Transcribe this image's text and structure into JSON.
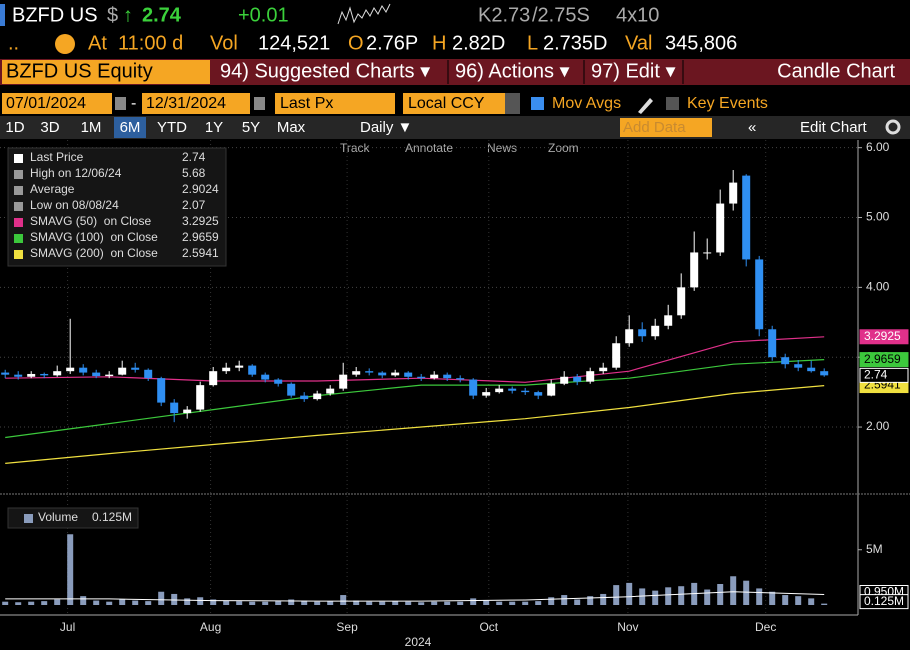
{
  "header": {
    "ticker": "BZFD US",
    "currency": "$",
    "arrow": "↑",
    "last": "2.74",
    "change": "+0.01",
    "bid": "K2.73",
    "ask": "/2.75S",
    "size": "4x10"
  },
  "quote": {
    "time_label": "At",
    "time": "11:00 d",
    "vol_label": "Vol",
    "vol": "124,521",
    "open_label": "O",
    "open": "2.76P",
    "high_label": "H",
    "high": "2.82D",
    "low_label": "L",
    "low": "2.735D",
    "val_label": "Val",
    "val": "345,806"
  },
  "menu": {
    "security": "BZFD US Equity",
    "suggested": "94) Suggested Charts ▾",
    "actions": "96) Actions ▾",
    "edit": "97) Edit ▾",
    "chart_type": "Candle Chart"
  },
  "settings": {
    "start": "07/01/2024",
    "dash": "-",
    "end": "12/31/2024",
    "field": "Last Px",
    "currency": "Local CCY",
    "mov_avgs": "Mov Avgs",
    "key_events": "Key Events"
  },
  "periods": [
    "1D",
    "3D",
    "1M",
    "6M",
    "YTD",
    "1Y",
    "5Y",
    "Max"
  ],
  "toolbar": {
    "frequency": "Daily ▼",
    "add_data": "Add Data",
    "edit_chart": "Edit Chart"
  },
  "tools": [
    "Track",
    "Annotate",
    "News",
    "Zoom"
  ],
  "chart_data": {
    "type": "candlestick",
    "legend": [
      "Last Price",
      "High on 12/06/24",
      "Average",
      "Low on 08/08/24"
    ],
    "average": 2.9024,
    "up_color": "#ffffff",
    "down_color": "#2f8ff2",
    "candles": [
      [
        2.78,
        2.82,
        2.7,
        2.75
      ],
      [
        2.75,
        2.8,
        2.68,
        2.72
      ],
      [
        2.72,
        2.8,
        2.7,
        2.76
      ],
      [
        2.76,
        2.78,
        2.7,
        2.74
      ],
      [
        2.74,
        2.88,
        2.72,
        2.8
      ],
      [
        2.8,
        3.55,
        2.76,
        2.85
      ],
      [
        2.85,
        2.9,
        2.74,
        2.78
      ],
      [
        2.78,
        2.82,
        2.7,
        2.73
      ],
      [
        2.73,
        2.8,
        2.7,
        2.75
      ],
      [
        2.75,
        2.95,
        2.74,
        2.85
      ],
      [
        2.85,
        2.92,
        2.78,
        2.82
      ],
      [
        2.82,
        2.84,
        2.66,
        2.7
      ],
      [
        2.7,
        2.72,
        2.3,
        2.35
      ],
      [
        2.35,
        2.4,
        2.07,
        2.2
      ],
      [
        2.2,
        2.3,
        2.12,
        2.25
      ],
      [
        2.25,
        2.65,
        2.22,
        2.6
      ],
      [
        2.6,
        2.86,
        2.58,
        2.8
      ],
      [
        2.8,
        2.92,
        2.76,
        2.85
      ],
      [
        2.85,
        2.95,
        2.8,
        2.88
      ],
      [
        2.88,
        2.9,
        2.72,
        2.75
      ],
      [
        2.75,
        2.78,
        2.64,
        2.68
      ],
      [
        2.68,
        2.7,
        2.58,
        2.62
      ],
      [
        2.62,
        2.64,
        2.42,
        2.45
      ],
      [
        2.45,
        2.5,
        2.36,
        2.4
      ],
      [
        2.4,
        2.52,
        2.38,
        2.48
      ],
      [
        2.48,
        2.6,
        2.45,
        2.55
      ],
      [
        2.55,
        2.92,
        2.52,
        2.75
      ],
      [
        2.75,
        2.86,
        2.72,
        2.8
      ],
      [
        2.8,
        2.84,
        2.74,
        2.78
      ],
      [
        2.78,
        2.8,
        2.7,
        2.74
      ],
      [
        2.74,
        2.82,
        2.72,
        2.78
      ],
      [
        2.78,
        2.8,
        2.68,
        2.72
      ],
      [
        2.72,
        2.76,
        2.66,
        2.7
      ],
      [
        2.7,
        2.8,
        2.68,
        2.75
      ],
      [
        2.75,
        2.78,
        2.66,
        2.7
      ],
      [
        2.7,
        2.74,
        2.64,
        2.68
      ],
      [
        2.68,
        2.7,
        2.4,
        2.45
      ],
      [
        2.45,
        2.56,
        2.42,
        2.5
      ],
      [
        2.5,
        2.6,
        2.48,
        2.55
      ],
      [
        2.55,
        2.58,
        2.48,
        2.52
      ],
      [
        2.52,
        2.56,
        2.46,
        2.5
      ],
      [
        2.5,
        2.52,
        2.4,
        2.45
      ],
      [
        2.45,
        2.68,
        2.44,
        2.62
      ],
      [
        2.62,
        2.8,
        2.6,
        2.72
      ],
      [
        2.72,
        2.76,
        2.6,
        2.65
      ],
      [
        2.65,
        2.85,
        2.62,
        2.8
      ],
      [
        2.8,
        2.92,
        2.76,
        2.85
      ],
      [
        2.85,
        3.3,
        2.82,
        3.2
      ],
      [
        3.2,
        3.6,
        3.15,
        3.4
      ],
      [
        3.4,
        3.5,
        3.22,
        3.3
      ],
      [
        3.3,
        3.55,
        3.25,
        3.45
      ],
      [
        3.45,
        3.75,
        3.4,
        3.6
      ],
      [
        3.6,
        4.2,
        3.55,
        4.0
      ],
      [
        4.0,
        4.8,
        3.95,
        4.5
      ],
      [
        4.5,
        4.7,
        4.4,
        4.5
      ],
      [
        4.5,
        5.4,
        4.45,
        5.2
      ],
      [
        5.2,
        5.68,
        5.1,
        5.5
      ],
      [
        5.6,
        5.62,
        4.3,
        4.4
      ],
      [
        4.4,
        4.45,
        3.3,
        3.4
      ],
      [
        3.4,
        3.45,
        2.95,
        3.0
      ],
      [
        3.0,
        3.05,
        2.84,
        2.9
      ],
      [
        2.9,
        2.96,
        2.8,
        2.85
      ],
      [
        2.85,
        2.95,
        2.78,
        2.8
      ],
      [
        2.8,
        2.84,
        2.72,
        2.74
      ]
    ],
    "series": [
      {
        "name": "SMAVG (50)  on Close",
        "color": "#e0308a",
        "x": [
          0,
          8,
          16,
          24,
          32,
          40,
          48,
          56,
          63
        ],
        "values": [
          2.7,
          2.72,
          2.66,
          2.66,
          2.7,
          2.64,
          2.8,
          3.22,
          3.2925
        ]
      },
      {
        "name": "SMAVG (100)  on Close",
        "color": "#3cc83c",
        "x": [
          0,
          8,
          16,
          24,
          32,
          40,
          48,
          56,
          63
        ],
        "values": [
          1.85,
          2.05,
          2.25,
          2.45,
          2.6,
          2.6,
          2.7,
          2.9,
          2.9659
        ]
      },
      {
        "name": "SMAVG (200)  on Close",
        "color": "#f0e040",
        "x": [
          0,
          8,
          16,
          24,
          32,
          40,
          48,
          56,
          63
        ],
        "values": [
          1.48,
          1.62,
          1.75,
          1.88,
          2.0,
          2.12,
          2.28,
          2.48,
          2.5941
        ]
      }
    ],
    "xlim": [
      -0.4,
      63.6
    ],
    "xticks": [
      {
        "value": 4.8,
        "label": "Jul"
      },
      {
        "value": 15.8,
        "label": "Aug"
      },
      {
        "value": 26.3,
        "label": "Sep"
      },
      {
        "value": 37.2,
        "label": "Oct"
      },
      {
        "value": 47.9,
        "label": "Nov"
      },
      {
        "value": 58.5,
        "label": "Dec"
      }
    ],
    "year": "2024",
    "ylim": [
      1.07,
      6.11
    ],
    "yticks": [
      {
        "value": 2,
        "label": "2.00"
      },
      {
        "value": 3,
        "label": "3.00"
      },
      {
        "value": 4,
        "label": "4.00"
      },
      {
        "value": 5,
        "label": "5.00"
      },
      {
        "value": 6,
        "label": "6.00"
      }
    ],
    "volume": {
      "name": "Volume",
      "color": "#8a9cbc",
      "values": [
        0.3,
        0.25,
        0.3,
        0.35,
        0.5,
        6.4,
        0.8,
        0.4,
        0.3,
        0.5,
        0.4,
        0.35,
        1.2,
        1.0,
        0.6,
        0.7,
        0.5,
        0.4,
        0.35,
        0.3,
        0.3,
        0.35,
        0.5,
        0.4,
        0.3,
        0.35,
        0.9,
        0.4,
        0.3,
        0.3,
        0.35,
        0.3,
        0.25,
        0.3,
        0.3,
        0.3,
        0.6,
        0.4,
        0.3,
        0.3,
        0.3,
        0.35,
        0.7,
        0.9,
        0.5,
        0.8,
        1.0,
        1.8,
        2.0,
        1.5,
        1.3,
        1.6,
        1.7,
        2.0,
        1.4,
        1.9,
        2.6,
        2.2,
        1.5,
        1.2,
        0.9,
        0.8,
        0.6,
        0.125
      ],
      "value_labels": {
        "63": "0.125M"
      },
      "ma": {
        "color": "#ffffff",
        "x": [
          0,
          8,
          16,
          24,
          32,
          40,
          48,
          56,
          63
        ],
        "values": [
          0.55,
          0.55,
          0.4,
          0.35,
          0.35,
          0.45,
          0.75,
          1.2,
          0.95
        ],
        "last_label": "0.950M"
      },
      "ylim": [
        0,
        9.5
      ],
      "yticks": [
        {
          "value": 5,
          "label": "5M"
        }
      ]
    }
  }
}
